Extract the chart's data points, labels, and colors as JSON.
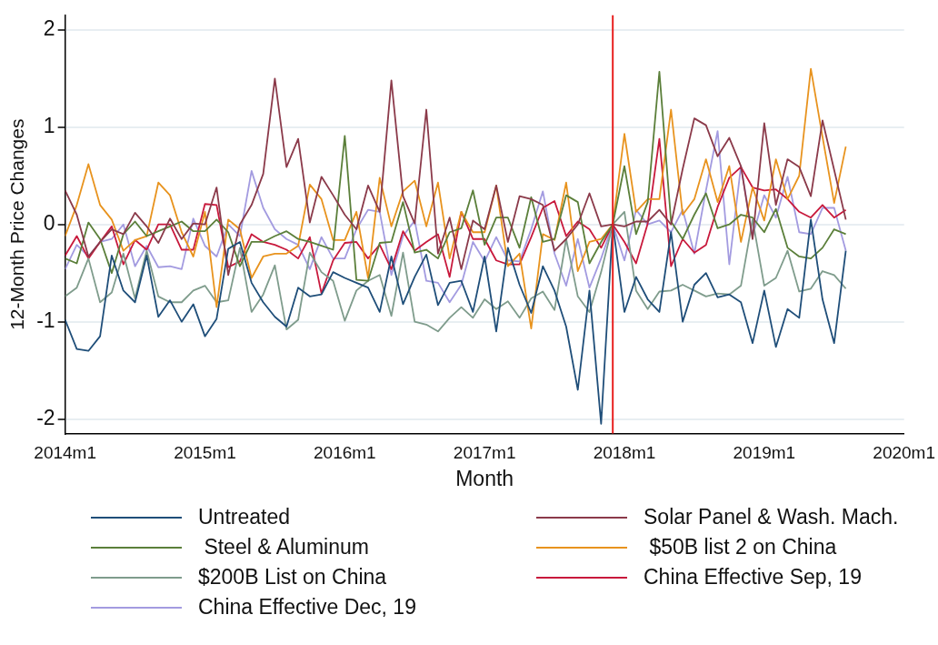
{
  "chart_data": {
    "type": "line",
    "xlabel": "Month",
    "ylabel": "12-Month Price Changes",
    "x": [
      "2014-01",
      "2014-02",
      "2014-03",
      "2014-04",
      "2014-05",
      "2014-06",
      "2014-07",
      "2014-08",
      "2014-09",
      "2014-10",
      "2014-11",
      "2014-12",
      "2015-01",
      "2015-02",
      "2015-03",
      "2015-04",
      "2015-05",
      "2015-06",
      "2015-07",
      "2015-08",
      "2015-09",
      "2015-10",
      "2015-11",
      "2015-12",
      "2016-01",
      "2016-02",
      "2016-03",
      "2016-04",
      "2016-05",
      "2016-06",
      "2016-07",
      "2016-08",
      "2016-09",
      "2016-10",
      "2016-11",
      "2016-12",
      "2017-01",
      "2017-02",
      "2017-03",
      "2017-04",
      "2017-05",
      "2017-06",
      "2017-07",
      "2017-08",
      "2017-09",
      "2017-10",
      "2017-11",
      "2017-12",
      "2018-01",
      "2018-02",
      "2018-03",
      "2018-04",
      "2018-05",
      "2018-06",
      "2018-07",
      "2018-08",
      "2018-09",
      "2018-10",
      "2018-11",
      "2018-12",
      "2019-01",
      "2019-02",
      "2019-03",
      "2019-04",
      "2019-05",
      "2019-06",
      "2019-07",
      "2019-08"
    ],
    "xlim": [
      "2014-01",
      "2020-01"
    ],
    "xticks": [
      {
        "value": "2014-01",
        "label": "2014m1"
      },
      {
        "value": "2015-01",
        "label": "2015m1"
      },
      {
        "value": "2016-01",
        "label": "2016m1"
      },
      {
        "value": "2017-01",
        "label": "2017m1"
      },
      {
        "value": "2018-01",
        "label": "2018m1"
      },
      {
        "value": "2019-01",
        "label": "2019m1"
      },
      {
        "value": "2020-01",
        "label": "2020m1"
      }
    ],
    "ylim": [
      -2.15,
      2.15
    ],
    "yticks": [
      -2,
      -1,
      0,
      1,
      2
    ],
    "grid": "y",
    "legend": "bottom",
    "ref_lines": [
      {
        "axis": "x",
        "value": "2017-12",
        "color": "#e8201f"
      }
    ],
    "series": [
      {
        "name": "Untreated",
        "color": "#1f4e79",
        "values": [
          -0.98,
          -1.28,
          -1.3,
          -1.15,
          -0.32,
          -0.68,
          -0.8,
          -0.32,
          -0.95,
          -0.78,
          -1.0,
          -0.82,
          -1.15,
          -0.97,
          -0.25,
          -0.18,
          -0.6,
          -0.8,
          -0.95,
          -1.05,
          -0.65,
          -0.74,
          -0.72,
          -0.49,
          -0.55,
          -0.6,
          -0.65,
          -0.9,
          -0.33,
          -0.82,
          -0.54,
          -0.31,
          -0.83,
          -0.6,
          -0.58,
          -0.9,
          -0.33,
          -1.1,
          -0.24,
          -0.62,
          -0.91,
          -0.43,
          -0.68,
          -1.05,
          -1.7,
          -0.68,
          -2.05,
          0,
          -0.9,
          -0.54,
          -0.77,
          -0.9,
          -0.08,
          -1.0,
          -0.62,
          -0.5,
          -0.75,
          -0.72,
          -0.8,
          -1.22,
          -0.68,
          -1.26,
          -0.87,
          -0.96,
          0.05,
          -0.77,
          -1.22,
          -0.27
        ]
      },
      {
        "name": "Solar Panel & Wash. Mach.",
        "color": "#8b3a4a",
        "values": [
          0.35,
          0.1,
          -0.33,
          -0.18,
          -0.05,
          -0.1,
          0.12,
          -0.02,
          -0.19,
          0.06,
          -0.15,
          0.01,
          0,
          0.38,
          -0.52,
          0,
          0.2,
          0.52,
          1.5,
          0.59,
          0.88,
          0.02,
          0.49,
          0.3,
          0.1,
          -0.05,
          0.4,
          0.13,
          1.48,
          0.29,
          0.01,
          1.18,
          -0.3,
          0.07,
          -0.46,
          0.04,
          -0.05,
          0.4,
          -0.18,
          0.29,
          0.26,
          0.2,
          -0.27,
          -0.15,
          0,
          0.32,
          -0.02,
          0,
          -0.02,
          0.03,
          0.03,
          0.15,
          0,
          0.57,
          1.09,
          1.02,
          0.7,
          0.89,
          0.6,
          -0.15,
          1.04,
          0.2,
          0.67,
          0.59,
          0.29,
          1.07,
          0.56,
          0.05
        ]
      },
      {
        "name": " Steel & Aluminum",
        "color": "#5b7f3a",
        "values": [
          -0.35,
          -0.4,
          0.02,
          -0.15,
          -0.5,
          -0.1,
          0.03,
          -0.12,
          -0.07,
          -0.02,
          0.03,
          -0.07,
          -0.07,
          0.05,
          -0.08,
          -0.43,
          -0.18,
          -0.18,
          -0.12,
          -0.07,
          -0.15,
          -0.18,
          -0.22,
          -0.26,
          0.91,
          -0.57,
          -0.58,
          -0.19,
          -0.18,
          0.23,
          -0.29,
          -0.26,
          -0.35,
          -0.08,
          -0.04,
          0.35,
          -0.21,
          0.07,
          0.07,
          -0.24,
          0.28,
          -0.18,
          -0.15,
          0.3,
          0.23,
          -0.4,
          -0.18,
          0,
          0.6,
          -0.1,
          0.23,
          1.57,
          0.03,
          -0.15,
          0.1,
          0.32,
          -0.04,
          0,
          0.1,
          0.07,
          -0.08,
          0.16,
          -0.24,
          -0.33,
          -0.35,
          -0.24,
          -0.05,
          -0.1
        ]
      },
      {
        "name": " $50B list 2 on China",
        "color": "#e8931e",
        "values": [
          -0.12,
          0.2,
          0.62,
          0.2,
          0.05,
          -0.27,
          -0.16,
          -0.12,
          0.43,
          0.3,
          -0.08,
          -0.33,
          0.13,
          -0.85,
          0.05,
          -0.05,
          -0.55,
          -0.33,
          -0.3,
          -0.3,
          -0.22,
          0.41,
          0.26,
          -0.16,
          -0.16,
          0.13,
          -0.55,
          0.48,
          -0.02,
          0.34,
          0.45,
          -0.02,
          0.43,
          -0.35,
          0.13,
          -0.08,
          -0.08,
          0.4,
          -0.43,
          -0.3,
          -1.07,
          -0.1,
          -0.16,
          0.43,
          -0.48,
          -0.18,
          -0.15,
          0,
          0.93,
          0.13,
          0.26,
          0.26,
          1.18,
          0.1,
          0.26,
          0.67,
          0.23,
          0.6,
          -0.18,
          0.38,
          0.04,
          0.67,
          0.26,
          0.5,
          1.6,
          0.9,
          0.22,
          0.8
        ]
      },
      {
        "name": "$200B List on China",
        "color": "#7f9c8c",
        "values": [
          -0.74,
          -0.65,
          -0.35,
          -0.8,
          -0.7,
          -0.3,
          -0.76,
          -0.27,
          -0.74,
          -0.8,
          -0.8,
          -0.68,
          -0.63,
          -0.8,
          -0.78,
          -0.24,
          -0.9,
          -0.72,
          -0.42,
          -1.08,
          -0.98,
          -0.29,
          -0.49,
          -0.58,
          -0.99,
          -0.68,
          -0.58,
          -0.52,
          -0.94,
          -0.29,
          -1.0,
          -1.03,
          -1.1,
          -0.96,
          -0.85,
          -0.96,
          -0.77,
          -0.87,
          -0.79,
          -0.96,
          -0.76,
          -0.69,
          -0.88,
          -0.15,
          -0.74,
          -0.9,
          -0.49,
          0,
          0.13,
          -0.68,
          -0.87,
          -0.69,
          -0.68,
          -0.62,
          -0.68,
          -0.74,
          -0.71,
          -0.72,
          -0.63,
          0.05,
          -0.63,
          -0.55,
          -0.27,
          -0.69,
          -0.66,
          -0.48,
          -0.52,
          -0.66
        ]
      },
      {
        "name": "China Effective Sep, 19",
        "color": "#c8193c",
        "values": [
          -0.32,
          -0.12,
          -0.35,
          -0.18,
          -0.02,
          -0.41,
          -0.16,
          -0.26,
          0,
          0,
          -0.26,
          -0.26,
          0.21,
          0.2,
          -0.44,
          -0.38,
          -0.1,
          -0.18,
          -0.21,
          -0.26,
          -0.35,
          -0.13,
          -0.71,
          -0.37,
          -0.19,
          -0.18,
          -0.35,
          -0.21,
          -0.46,
          -0.07,
          -0.27,
          -0.18,
          -0.1,
          -0.54,
          0.13,
          -0.15,
          -0.15,
          -0.37,
          -0.41,
          -0.41,
          -0.13,
          0.17,
          0.24,
          -0.12,
          0.03,
          -0.05,
          -0.24,
          0,
          -0.18,
          -0.4,
          0.01,
          0.88,
          -0.43,
          -0.15,
          -0.29,
          -0.21,
          0.18,
          0.48,
          0.59,
          0.38,
          0.35,
          0.36,
          0.26,
          0.13,
          0.07,
          0.2,
          0.07,
          0.15
        ]
      },
      {
        "name": "China Effective Dec, 19",
        "color": "#a39be0",
        "values": [
          -0.46,
          -0.21,
          -0.33,
          -0.18,
          -0.15,
          0,
          -0.43,
          -0.22,
          -0.44,
          -0.43,
          -0.46,
          0.06,
          -0.22,
          -0.33,
          0,
          -0.12,
          0.55,
          0.17,
          -0.05,
          -0.15,
          -0.21,
          -0.46,
          -0.13,
          -0.35,
          -0.35,
          -0.05,
          0.15,
          0.13,
          -0.52,
          -0.12,
          0.04,
          -0.58,
          -0.6,
          -0.8,
          -0.62,
          -0.18,
          -0.38,
          -0.13,
          -0.37,
          -0.38,
          -0.05,
          0.34,
          -0.3,
          -0.63,
          -0.15,
          -0.65,
          -0.35,
          0,
          -0.37,
          0.15,
          0,
          0.04,
          -0.08,
          0.15,
          -0.3,
          0.35,
          0.96,
          -0.41,
          0.6,
          -0.12,
          0.3,
          0.07,
          0.49,
          -0.08,
          -0.1,
          0.17,
          0.17,
          -0.27
        ]
      }
    ]
  }
}
